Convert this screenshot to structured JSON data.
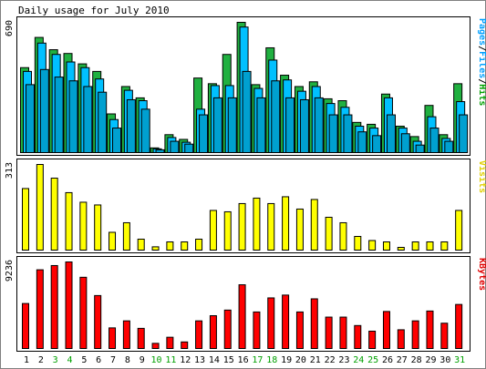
{
  "chart_data": {
    "type": "bar",
    "title": "Daily usage for July 2010",
    "categories": [
      "1",
      "2",
      "3",
      "4",
      "5",
      "6",
      "7",
      "8",
      "9",
      "10",
      "11",
      "12",
      "13",
      "14",
      "15",
      "16",
      "17",
      "18",
      "19",
      "20",
      "21",
      "22",
      "23",
      "24",
      "25",
      "26",
      "27",
      "28",
      "29",
      "30",
      "31"
    ],
    "weekend_days": [
      "3",
      "4",
      "10",
      "11",
      "17",
      "18",
      "24",
      "25",
      "31"
    ],
    "panels": [
      {
        "key": "traffic",
        "max_label": "690",
        "ylim": [
          0,
          690
        ],
        "right_label_parts": [
          {
            "text": "Pages",
            "color": "#00a0ff"
          },
          {
            "text": "/",
            "color": "#000000"
          },
          {
            "text": "Files",
            "color": "#00a0ff"
          },
          {
            "text": "/",
            "color": "#000000"
          },
          {
            "text": "Hits",
            "color": "#00a000"
          }
        ],
        "series": [
          {
            "name": "Hits",
            "color": "#20b040",
            "values": [
              450,
              610,
              545,
              525,
              470,
              430,
              205,
              350,
              290,
              25,
              95,
              70,
              395,
              365,
              520,
              690,
              360,
              555,
              410,
              350,
              375,
              285,
              275,
              160,
              150,
              310,
              140,
              85,
              250,
              95,
              365
            ]
          },
          {
            "name": "Files",
            "color": "#00c0ff",
            "values": [
              430,
              580,
              520,
              480,
              450,
              390,
              175,
              330,
              275,
              20,
              80,
              55,
              230,
              355,
              355,
              665,
              340,
              490,
              385,
              325,
              350,
              260,
              240,
              140,
              130,
              290,
              130,
              60,
              190,
              75,
              270
            ]
          },
          {
            "name": "Pages",
            "color": "#00a0d0",
            "values": [
              360,
              440,
              400,
              380,
              350,
              320,
              130,
              280,
              230,
              15,
              60,
              45,
              200,
              290,
              290,
              430,
              290,
              380,
              290,
              280,
              290,
              200,
              200,
              110,
              90,
              200,
              100,
              40,
              130,
              60,
              200
            ]
          }
        ]
      },
      {
        "key": "visits",
        "max_label": "313",
        "ylim": [
          0,
          313
        ],
        "right_label_parts": [
          {
            "text": "Visits",
            "color": "#e0d000"
          }
        ],
        "series": [
          {
            "name": "Visits",
            "color": "#ffff00",
            "values": [
              225,
              313,
              263,
              210,
              175,
              165,
              65,
              100,
              40,
              12,
              30,
              30,
              40,
              145,
              140,
              170,
              190,
              170,
              195,
              150,
              185,
              120,
              100,
              50,
              35,
              30,
              10,
              30,
              30,
              30,
              145
            ]
          }
        ]
      },
      {
        "key": "kbytes",
        "max_label": "9236",
        "ylim": [
          0,
          9236
        ],
        "right_label_parts": [
          {
            "text": "KBytes",
            "color": "#e00000"
          }
        ],
        "series": [
          {
            "name": "KBytes",
            "color": "#ff0000",
            "values": [
              4800,
              8400,
              8850,
              9236,
              7600,
              5650,
              2200,
              2950,
              2150,
              550,
              1200,
              700,
              2950,
              3500,
              4100,
              6800,
              3900,
              5400,
              5700,
              3900,
              5300,
              3350,
              3350,
              2450,
              1850,
              3950,
              2000,
              2950,
              4000,
              2700,
              4700
            ]
          }
        ]
      }
    ],
    "colors": {
      "frame": "#000000",
      "weekday_tick": "#000000",
      "weekend_tick": "#00a000",
      "bar_outline": "#000000"
    }
  }
}
